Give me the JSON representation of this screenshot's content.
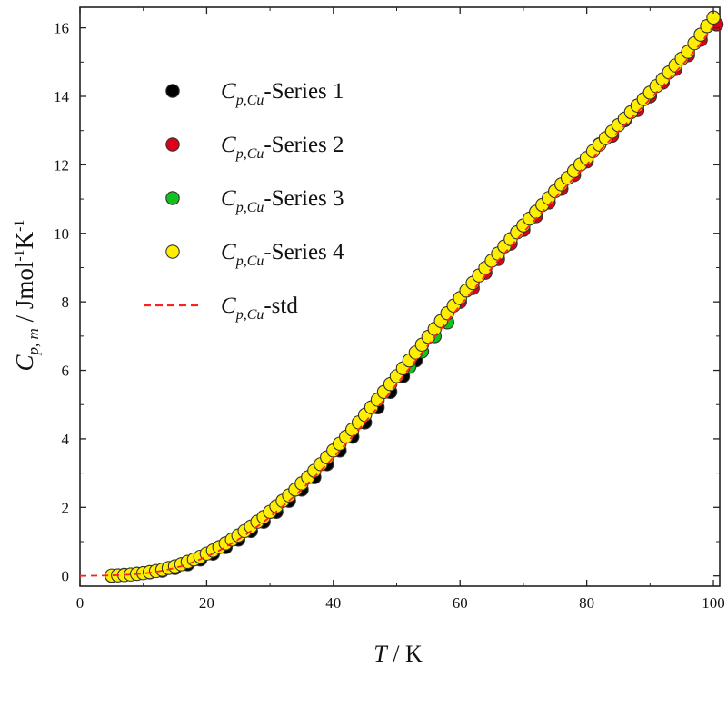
{
  "chart_data": {
    "type": "scatter",
    "xlabel": {
      "symbol": "T",
      "unit": " / K"
    },
    "ylabel": {
      "symbol": "C",
      "sub": "p, m",
      "unit": " / Jmol",
      "sup1": "-1",
      "unit2": "K",
      "sup2": "-1"
    },
    "xlim": [
      0,
      101
    ],
    "ylim": [
      -0.3,
      16.6
    ],
    "x_ticks": [
      "0",
      "20",
      "40",
      "60",
      "80",
      "100"
    ],
    "y_ticks": [
      "0",
      "2",
      "4",
      "6",
      "8",
      "10",
      "12",
      "14",
      "16"
    ],
    "grid": false,
    "legend_position": "top-left",
    "legend": [
      {
        "symbol": "C",
        "sub": "p,Cu",
        "text": "-Series 1",
        "color": "#000000",
        "marker": "circle"
      },
      {
        "symbol": "C",
        "sub": "p,Cu",
        "text": "-Series 2",
        "color": "#e0001b",
        "marker": "circle"
      },
      {
        "symbol": "C",
        "sub": "p,Cu",
        "text": "-Series 3",
        "color": "#12c21c",
        "marker": "circle"
      },
      {
        "symbol": "C",
        "sub": "p,Cu",
        "text": "-Series 4",
        "color": "#ffee00",
        "marker": "circle"
      },
      {
        "symbol": "C",
        "sub": "p,Cu",
        "text": "-std",
        "color": "#ff2020",
        "marker": "dashed-line"
      }
    ],
    "reference_curve": {
      "name": "std",
      "x": [
        0,
        4,
        6,
        8,
        10,
        12,
        14,
        16,
        18,
        20,
        22,
        24,
        26,
        28,
        30,
        32,
        34,
        36,
        38,
        40,
        42,
        44,
        46,
        48,
        50,
        52,
        54,
        56,
        58,
        60,
        62,
        64,
        66,
        68,
        70,
        72,
        74,
        76,
        78,
        80,
        82,
        84,
        86,
        88,
        90,
        92,
        94,
        96,
        98,
        100
      ],
      "y": [
        0,
        0.01,
        0.02,
        0.04,
        0.07,
        0.12,
        0.19,
        0.28,
        0.41,
        0.56,
        0.74,
        0.95,
        1.18,
        1.44,
        1.72,
        2.03,
        2.35,
        2.7,
        3.07,
        3.46,
        3.86,
        4.27,
        4.7,
        5.14,
        5.6,
        6.06,
        6.52,
        6.98,
        7.44,
        7.89,
        8.33,
        8.77,
        9.2,
        9.62,
        10.03,
        10.43,
        10.83,
        11.23,
        11.62,
        12.01,
        12.4,
        12.78,
        13.16,
        13.54,
        13.92,
        14.3,
        14.7,
        15.1,
        15.55,
        16.05
      ]
    },
    "series": [
      {
        "name": "Series 1",
        "color": "#000000",
        "x": [
          5,
          7,
          9,
          11,
          13,
          15,
          17,
          19,
          21,
          23,
          25,
          27,
          29,
          31,
          33,
          35,
          37,
          39,
          41,
          43,
          45,
          47,
          49,
          51,
          53
        ],
        "y": [
          0.005,
          0.03,
          0.06,
          0.1,
          0.15,
          0.23,
          0.34,
          0.48,
          0.65,
          0.84,
          1.06,
          1.31,
          1.58,
          1.87,
          2.19,
          2.52,
          2.88,
          3.26,
          3.66,
          4.06,
          4.48,
          4.92,
          5.37,
          5.83,
          6.29
        ]
      },
      {
        "name": "Series 2",
        "color": "#e0001b",
        "x": [
          60,
          62,
          64,
          66,
          68,
          70,
          72,
          74,
          76,
          78,
          80,
          82,
          84,
          86,
          88,
          90,
          92,
          94,
          96,
          98,
          100.5
        ],
        "y": [
          8.0,
          8.4,
          8.85,
          9.25,
          9.7,
          10.1,
          10.5,
          10.9,
          11.3,
          11.7,
          12.1,
          12.6,
          12.85,
          13.3,
          13.6,
          14.0,
          14.4,
          14.8,
          15.2,
          15.65,
          16.1
        ]
      },
      {
        "name": "Series 3",
        "color": "#12c21c",
        "x": [
          52,
          54,
          56,
          58
        ],
        "y": [
          6.1,
          6.55,
          7.0,
          7.4
        ]
      },
      {
        "name": "Series 4",
        "color": "#ffee00",
        "x": [
          5,
          6,
          7,
          8,
          9,
          10,
          11,
          12,
          13,
          14,
          15,
          16,
          17,
          18,
          19,
          20,
          21,
          22,
          23,
          24,
          25,
          26,
          27,
          28,
          29,
          30,
          31,
          32,
          33,
          34,
          35,
          36,
          37,
          38,
          39,
          40,
          41,
          42,
          43,
          44,
          45,
          46,
          47,
          48,
          49,
          50,
          51,
          52,
          53,
          54,
          55,
          56,
          57,
          58,
          59,
          60,
          61,
          62,
          63,
          64,
          65,
          66,
          67,
          68,
          69,
          70,
          71,
          72,
          73,
          74,
          75,
          76,
          77,
          78,
          79,
          80,
          81,
          82,
          83,
          84,
          85,
          86,
          87,
          88,
          89,
          90,
          91,
          92,
          93,
          94,
          95,
          96,
          97,
          98,
          99,
          100
        ],
        "y": [
          0.01,
          0.015,
          0.025,
          0.04,
          0.06,
          0.08,
          0.11,
          0.14,
          0.18,
          0.23,
          0.28,
          0.34,
          0.41,
          0.48,
          0.56,
          0.65,
          0.74,
          0.84,
          0.95,
          1.06,
          1.18,
          1.31,
          1.44,
          1.58,
          1.72,
          1.87,
          2.03,
          2.19,
          2.35,
          2.52,
          2.7,
          2.88,
          3.07,
          3.26,
          3.46,
          3.66,
          3.86,
          4.06,
          4.27,
          4.48,
          4.7,
          4.92,
          5.14,
          5.37,
          5.6,
          5.83,
          6.06,
          6.29,
          6.52,
          6.75,
          6.98,
          7.21,
          7.44,
          7.67,
          7.89,
          8.11,
          8.33,
          8.55,
          8.77,
          8.99,
          9.2,
          9.41,
          9.62,
          9.83,
          10.03,
          10.23,
          10.43,
          10.63,
          10.83,
          11.03,
          11.23,
          11.43,
          11.62,
          11.82,
          12.01,
          12.2,
          12.4,
          12.59,
          12.78,
          12.97,
          13.16,
          13.35,
          13.54,
          13.73,
          13.92,
          14.11,
          14.3,
          14.5,
          14.7,
          14.9,
          15.1,
          15.3,
          15.55,
          15.8,
          16.05,
          16.3
        ]
      }
    ]
  }
}
